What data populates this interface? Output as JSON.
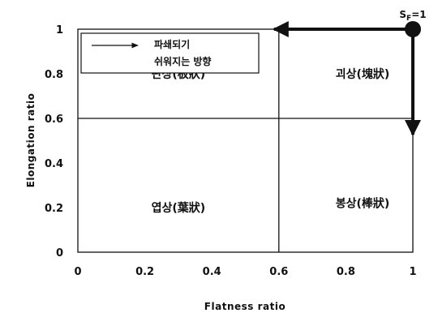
{
  "chart_data": {
    "type": "scatter",
    "title": "",
    "xlabel": "Flatness ratio",
    "ylabel": "Elongation ratio",
    "xlim": [
      0,
      1
    ],
    "ylim": [
      0,
      1
    ],
    "x_ticks": [
      "0",
      "0.2",
      "0.4",
      "0.6",
      "0.8",
      "1"
    ],
    "y_ticks": [
      "0",
      "0.2",
      "0.4",
      "0.6",
      "0.8",
      "1"
    ],
    "x_tick_values": [
      0,
      0.2,
      0.4,
      0.6,
      0.8,
      1
    ],
    "y_tick_values": [
      0,
      0.2,
      0.4,
      0.6,
      0.8,
      1
    ],
    "dividers": {
      "x": 0.6,
      "y": 0.6
    },
    "regions": [
      {
        "label": "판상(板狀)",
        "x": 0.3,
        "y": 0.8
      },
      {
        "label": "괴상(塊狀)",
        "x": 0.85,
        "y": 0.8
      },
      {
        "label": "엽상(葉狀)",
        "x": 0.3,
        "y": 0.2
      },
      {
        "label": "봉상(棒狀)",
        "x": 0.85,
        "y": 0.22
      }
    ],
    "point": {
      "label": "S",
      "subscript": "F",
      "suffix": "=1",
      "x": 1,
      "y": 1
    },
    "arrows": [
      {
        "from": [
          1,
          1
        ],
        "to": [
          0.6,
          1
        ]
      },
      {
        "from": [
          1,
          1
        ],
        "to": [
          1,
          0.6
        ]
      }
    ],
    "legend": {
      "line1": "파쇄되기",
      "line2": "쉬워지는 방향",
      "position": "top-left"
    }
  }
}
